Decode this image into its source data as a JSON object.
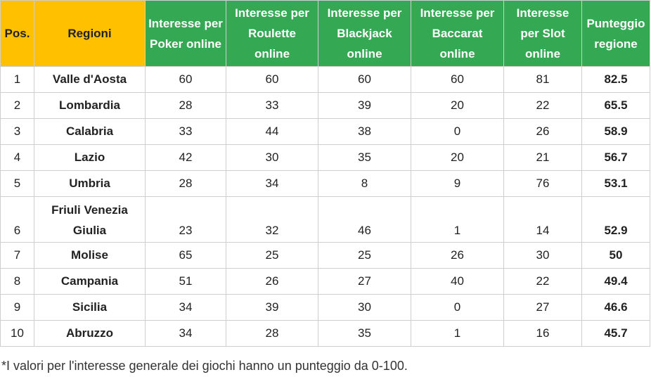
{
  "table": {
    "headers": [
      "Pos.",
      "Regioni",
      "Interesse per Poker online",
      "Interesse per Roulette online",
      "Interesse per Blackjack online",
      "Interesse per Baccarat online",
      "Interesse per Slot online",
      "Punteggio regione"
    ],
    "rows": [
      {
        "pos": "1",
        "region": "Valle d'Aosta",
        "poker": "60",
        "roulette": "60",
        "blackjack": "60",
        "baccarat": "60",
        "slot": "81",
        "score": "82.5"
      },
      {
        "pos": "2",
        "region": "Lombardia",
        "poker": "28",
        "roulette": "33",
        "blackjack": "39",
        "baccarat": "20",
        "slot": "22",
        "score": "65.5"
      },
      {
        "pos": "3",
        "region": "Calabria",
        "poker": "33",
        "roulette": "44",
        "blackjack": "38",
        "baccarat": "0",
        "slot": "26",
        "score": "58.9"
      },
      {
        "pos": "4",
        "region": "Lazio",
        "poker": "42",
        "roulette": "30",
        "blackjack": "35",
        "baccarat": "20",
        "slot": "21",
        "score": "56.7"
      },
      {
        "pos": "5",
        "region": "Umbria",
        "poker": "28",
        "roulette": "34",
        "blackjack": "8",
        "baccarat": "9",
        "slot": "76",
        "score": "53.1"
      },
      {
        "pos": "6",
        "region": "Friuli Venezia Giulia",
        "poker": "23",
        "roulette": "32",
        "blackjack": "46",
        "baccarat": "1",
        "slot": "14",
        "score": "52.9"
      },
      {
        "pos": "7",
        "region": "Molise",
        "poker": "65",
        "roulette": "25",
        "blackjack": "25",
        "baccarat": "26",
        "slot": "30",
        "score": "50"
      },
      {
        "pos": "8",
        "region": "Campania",
        "poker": "51",
        "roulette": "26",
        "blackjack": "27",
        "baccarat": "40",
        "slot": "22",
        "score": "49.4"
      },
      {
        "pos": "9",
        "region": "Sicilia",
        "poker": "34",
        "roulette": "39",
        "blackjack": "30",
        "baccarat": "0",
        "slot": "27",
        "score": "46.6"
      },
      {
        "pos": "10",
        "region": "Abruzzo",
        "poker": "34",
        "roulette": "28",
        "blackjack": "35",
        "baccarat": "1",
        "slot": "16",
        "score": "45.7"
      }
    ]
  },
  "footnote": "*I valori per l'interesse generale dei giochi hanno un punteggio da 0-100.",
  "colors": {
    "header_pos_regioni": "#ffc000",
    "header_games": "#34a853",
    "border": "#cfcfcf"
  }
}
